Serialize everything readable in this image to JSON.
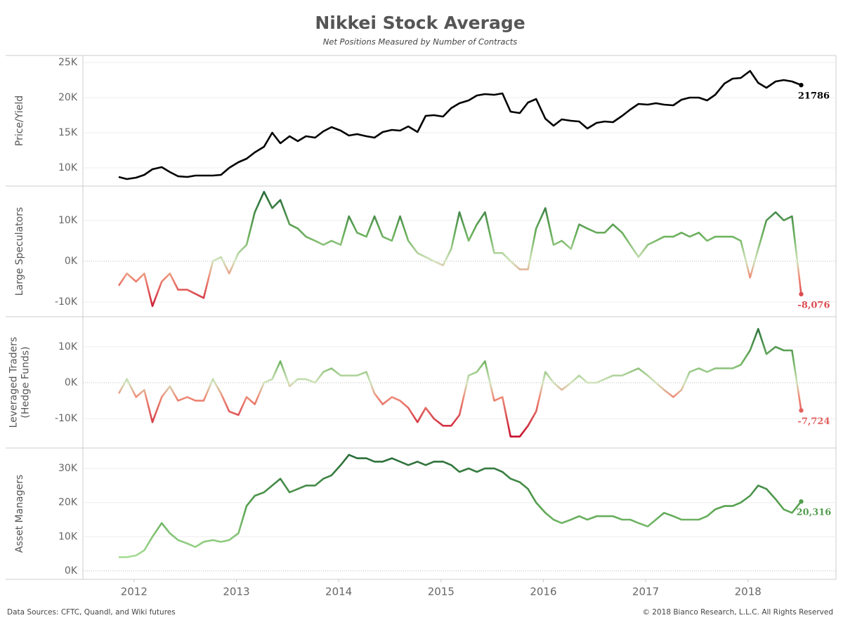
{
  "title": "Nikkei Stock Average",
  "subtitle": "Net Positions Measured by Number of Contracts",
  "sources": "Data Sources: CFTC, Quandl, and Wiki futures",
  "copyright": "© 2018 Bianco Research, L.L.C. All Rights Reserved",
  "chart_data": [
    {
      "type": "line",
      "ylabel_lines": [
        "Price/Yield"
      ],
      "x": [
        2011.85,
        2011.93,
        2012.02,
        2012.1,
        2012.18,
        2012.27,
        2012.35,
        2012.43,
        2012.52,
        2012.6,
        2012.68,
        2012.77,
        2012.85,
        2012.93,
        2013.02,
        2013.1,
        2013.18,
        2013.27,
        2013.35,
        2013.43,
        2013.52,
        2013.6,
        2013.68,
        2013.77,
        2013.85,
        2013.93,
        2014.02,
        2014.1,
        2014.18,
        2014.27,
        2014.35,
        2014.43,
        2014.52,
        2014.6,
        2014.68,
        2014.77,
        2014.85,
        2014.93,
        2015.02,
        2015.1,
        2015.18,
        2015.27,
        2015.35,
        2015.43,
        2015.52,
        2015.6,
        2015.68,
        2015.77,
        2015.85,
        2015.93,
        2016.02,
        2016.1,
        2016.18,
        2016.27,
        2016.35,
        2016.43,
        2016.52,
        2016.6,
        2016.68,
        2016.77,
        2016.85,
        2016.93,
        2017.02,
        2017.1,
        2017.18,
        2017.27,
        2017.35,
        2017.43,
        2017.52,
        2017.6,
        2017.68,
        2017.77,
        2017.85,
        2017.93,
        2018.02,
        2018.1,
        2018.18,
        2018.27,
        2018.35,
        2018.43,
        2018.52
      ],
      "values": [
        8700,
        8400,
        8600,
        9000,
        9800,
        10100,
        9400,
        8800,
        8700,
        8900,
        8900,
        8900,
        9000,
        10000,
        10800,
        11300,
        12200,
        13000,
        15000,
        13500,
        14500,
        13800,
        14500,
        14300,
        15200,
        15800,
        15300,
        14600,
        14800,
        14500,
        14300,
        15100,
        15400,
        15300,
        15900,
        15100,
        17400,
        17500,
        17300,
        18500,
        19200,
        19600,
        20300,
        20500,
        20400,
        20600,
        18000,
        17800,
        19300,
        19800,
        17000,
        16000,
        16900,
        16700,
        16600,
        15600,
        16400,
        16600,
        16500,
        17400,
        18300,
        19100,
        19000,
        19200,
        19000,
        18900,
        19700,
        20000,
        20000,
        19600,
        20400,
        22000,
        22700,
        22800,
        23800,
        22100,
        21400,
        22300,
        22500,
        22300,
        21786
      ],
      "value_labels": {
        "80": "21786"
      },
      "colors": [
        {
          "value": 0,
          "color": "#000000"
        }
      ],
      "xlim": [
        2011.5,
        2018.86
      ],
      "ylim": [
        7400,
        26000
      ],
      "yticks": [
        {
          "value": 10000,
          "label": "10K"
        },
        {
          "value": 15000,
          "label": "15K"
        },
        {
          "value": 20000,
          "label": "20K"
        },
        {
          "value": 25000,
          "label": "25K"
        }
      ]
    },
    {
      "type": "line",
      "ylabel_lines": [
        "Large Speculators"
      ],
      "x": [
        2011.85,
        2011.93,
        2012.02,
        2012.1,
        2012.18,
        2012.27,
        2012.35,
        2012.43,
        2012.52,
        2012.6,
        2012.68,
        2012.77,
        2012.85,
        2012.93,
        2013.02,
        2013.1,
        2013.18,
        2013.27,
        2013.35,
        2013.43,
        2013.52,
        2013.6,
        2013.68,
        2013.77,
        2013.85,
        2013.93,
        2014.02,
        2014.1,
        2014.18,
        2014.27,
        2014.35,
        2014.43,
        2014.52,
        2014.6,
        2014.68,
        2014.77,
        2014.85,
        2014.93,
        2015.02,
        2015.1,
        2015.18,
        2015.27,
        2015.35,
        2015.43,
        2015.52,
        2015.6,
        2015.68,
        2015.77,
        2015.85,
        2015.93,
        2016.02,
        2016.1,
        2016.18,
        2016.27,
        2016.35,
        2016.43,
        2016.52,
        2016.6,
        2016.68,
        2016.77,
        2016.85,
        2016.93,
        2017.02,
        2017.1,
        2017.18,
        2017.27,
        2017.35,
        2017.43,
        2017.52,
        2017.6,
        2017.68,
        2017.77,
        2017.85,
        2017.93,
        2018.02,
        2018.1,
        2018.18,
        2018.27,
        2018.35,
        2018.43,
        2018.52
      ],
      "values": [
        -6000,
        -3000,
        -5000,
        -3000,
        -11000,
        -5000,
        -3000,
        -7000,
        -7000,
        -8000,
        -9000,
        0,
        1000,
        -3000,
        2000,
        4000,
        12000,
        17000,
        13000,
        15000,
        9000,
        8000,
        6000,
        5000,
        4000,
        5000,
        4000,
        11000,
        7000,
        6000,
        11000,
        6000,
        5000,
        11000,
        5000,
        2000,
        1000,
        0,
        -1000,
        3000,
        12000,
        5000,
        9000,
        12000,
        2000,
        2000,
        0,
        -2000,
        -2000,
        8000,
        13000,
        4000,
        5000,
        3000,
        9000,
        8000,
        7000,
        7000,
        9000,
        7000,
        4000,
        1000,
        4000,
        5000,
        6000,
        6000,
        7000,
        6000,
        7000,
        5000,
        6000,
        6000,
        6000,
        5000,
        -4000,
        3000,
        10000,
        12000,
        10000,
        11000,
        -8076
      ],
      "value_labels": {
        "80": "-8,076"
      },
      "colors": [
        {
          "value": -12000,
          "color": "#c8102e"
        },
        {
          "value": -4000,
          "color": "#ef8c78"
        },
        {
          "value": 0,
          "color": "#d2e4bd"
        },
        {
          "value": 6000,
          "color": "#6fb35f"
        },
        {
          "value": 16000,
          "color": "#2a6e3a"
        }
      ],
      "xlim": [
        2011.5,
        2018.86
      ],
      "ylim": [
        -13600,
        18400
      ],
      "yticks": [
        {
          "value": -10000,
          "label": "-10K"
        },
        {
          "value": 0,
          "label": "0K"
        },
        {
          "value": 10000,
          "label": "10K"
        }
      ]
    },
    {
      "type": "line",
      "ylabel_lines": [
        "Leveraged Traders",
        "(Hedge Funds)"
      ],
      "x": [
        2011.85,
        2011.93,
        2012.02,
        2012.1,
        2012.18,
        2012.27,
        2012.35,
        2012.43,
        2012.52,
        2012.6,
        2012.68,
        2012.77,
        2012.85,
        2012.93,
        2013.02,
        2013.1,
        2013.18,
        2013.27,
        2013.35,
        2013.43,
        2013.52,
        2013.6,
        2013.68,
        2013.77,
        2013.85,
        2013.93,
        2014.02,
        2014.1,
        2014.18,
        2014.27,
        2014.35,
        2014.43,
        2014.52,
        2014.6,
        2014.68,
        2014.77,
        2014.85,
        2014.93,
        2015.02,
        2015.1,
        2015.18,
        2015.27,
        2015.35,
        2015.43,
        2015.52,
        2015.6,
        2015.68,
        2015.77,
        2015.85,
        2015.93,
        2016.02,
        2016.1,
        2016.18,
        2016.27,
        2016.35,
        2016.43,
        2016.52,
        2016.6,
        2016.68,
        2016.77,
        2016.85,
        2016.93,
        2017.02,
        2017.1,
        2017.18,
        2017.27,
        2017.35,
        2017.43,
        2017.52,
        2017.6,
        2017.68,
        2017.77,
        2017.85,
        2017.93,
        2018.02,
        2018.1,
        2018.18,
        2018.27,
        2018.35,
        2018.43,
        2018.52
      ],
      "values": [
        -3000,
        1000,
        -4000,
        -2000,
        -11000,
        -4000,
        -1000,
        -5000,
        -4000,
        -5000,
        -5000,
        1000,
        -3000,
        -8000,
        -9000,
        -4000,
        -6000,
        0,
        1000,
        6000,
        -1000,
        1000,
        1000,
        0,
        3000,
        4000,
        2000,
        2000,
        2000,
        3000,
        -3000,
        -6000,
        -4000,
        -5000,
        -7000,
        -11000,
        -7000,
        -10000,
        -12000,
        -12000,
        -9000,
        2000,
        3000,
        6000,
        -5000,
        -4000,
        -15000,
        -15000,
        -12000,
        -8000,
        3000,
        0,
        -2000,
        0,
        2000,
        0,
        0,
        1000,
        2000,
        2000,
        3000,
        4000,
        2000,
        0,
        -2000,
        -4000,
        -2000,
        3000,
        4000,
        3000,
        4000,
        4000,
        4000,
        5000,
        9000,
        15000,
        8000,
        10000,
        9000,
        9000,
        -7724
      ],
      "value_labels": {
        "80": "-7,724"
      },
      "colors": [
        {
          "value": -15000,
          "color": "#c8102e"
        },
        {
          "value": -4000,
          "color": "#ef8c78"
        },
        {
          "value": 0,
          "color": "#d2e4bd"
        },
        {
          "value": 6000,
          "color": "#6fb35f"
        },
        {
          "value": 16000,
          "color": "#2a6e3a"
        }
      ],
      "xlim": [
        2011.5,
        2018.86
      ],
      "ylim": [
        -18200,
        18400
      ],
      "yticks": [
        {
          "value": -10000,
          "label": "-10K"
        },
        {
          "value": 0,
          "label": "0K"
        },
        {
          "value": 10000,
          "label": "10K"
        }
      ]
    },
    {
      "type": "line",
      "ylabel_lines": [
        "Asset Managers"
      ],
      "x": [
        2011.85,
        2011.93,
        2012.02,
        2012.1,
        2012.18,
        2012.27,
        2012.35,
        2012.43,
        2012.52,
        2012.6,
        2012.68,
        2012.77,
        2012.85,
        2012.93,
        2013.02,
        2013.1,
        2013.18,
        2013.27,
        2013.35,
        2013.43,
        2013.52,
        2013.6,
        2013.68,
        2013.77,
        2013.85,
        2013.93,
        2014.02,
        2014.1,
        2014.18,
        2014.27,
        2014.35,
        2014.43,
        2014.52,
        2014.6,
        2014.68,
        2014.77,
        2014.85,
        2014.93,
        2015.02,
        2015.1,
        2015.18,
        2015.27,
        2015.35,
        2015.43,
        2015.52,
        2015.6,
        2015.68,
        2015.77,
        2015.85,
        2015.93,
        2016.02,
        2016.1,
        2016.18,
        2016.27,
        2016.35,
        2016.43,
        2016.52,
        2016.6,
        2016.68,
        2016.77,
        2016.85,
        2016.93,
        2017.02,
        2017.1,
        2017.18,
        2017.27,
        2017.35,
        2017.43,
        2017.52,
        2017.6,
        2017.68,
        2017.77,
        2017.85,
        2017.93,
        2018.02,
        2018.1,
        2018.18,
        2018.27,
        2018.35,
        2018.43,
        2018.52
      ],
      "values": [
        4000,
        4000,
        4500,
        6000,
        10000,
        14000,
        11000,
        9000,
        8000,
        7000,
        8500,
        9000,
        8500,
        9000,
        11000,
        19000,
        22000,
        23000,
        25000,
        27000,
        23000,
        24000,
        25000,
        25000,
        27000,
        28000,
        31000,
        34000,
        33000,
        33000,
        32000,
        32000,
        33000,
        32000,
        31000,
        32000,
        31000,
        32000,
        32000,
        31000,
        29000,
        30000,
        29000,
        30000,
        30000,
        29000,
        27000,
        26000,
        24000,
        20000,
        17000,
        15000,
        14000,
        15000,
        16000,
        15000,
        16000,
        16000,
        16000,
        15000,
        15000,
        14000,
        13000,
        15000,
        17000,
        16000,
        15000,
        15000,
        15000,
        16000,
        18000,
        19000,
        19000,
        20000,
        22000,
        25000,
        24000,
        21000,
        18000,
        17000,
        20316
      ],
      "value_labels": {
        "80": "20,316"
      },
      "colors": [
        {
          "value": 4000,
          "color": "#a6dc94"
        },
        {
          "value": 18000,
          "color": "#5ba552"
        },
        {
          "value": 33000,
          "color": "#2a6e3a"
        }
      ],
      "xlim": [
        2011.5,
        2018.86
      ],
      "ylim": [
        -2500,
        36000
      ],
      "yticks": [
        {
          "value": 0,
          "label": "0K"
        },
        {
          "value": 10000,
          "label": "10K"
        },
        {
          "value": 20000,
          "label": "20K"
        },
        {
          "value": 30000,
          "label": "30K"
        }
      ],
      "xticks": [
        2012,
        2013,
        2014,
        2015,
        2016,
        2017,
        2018
      ]
    }
  ]
}
